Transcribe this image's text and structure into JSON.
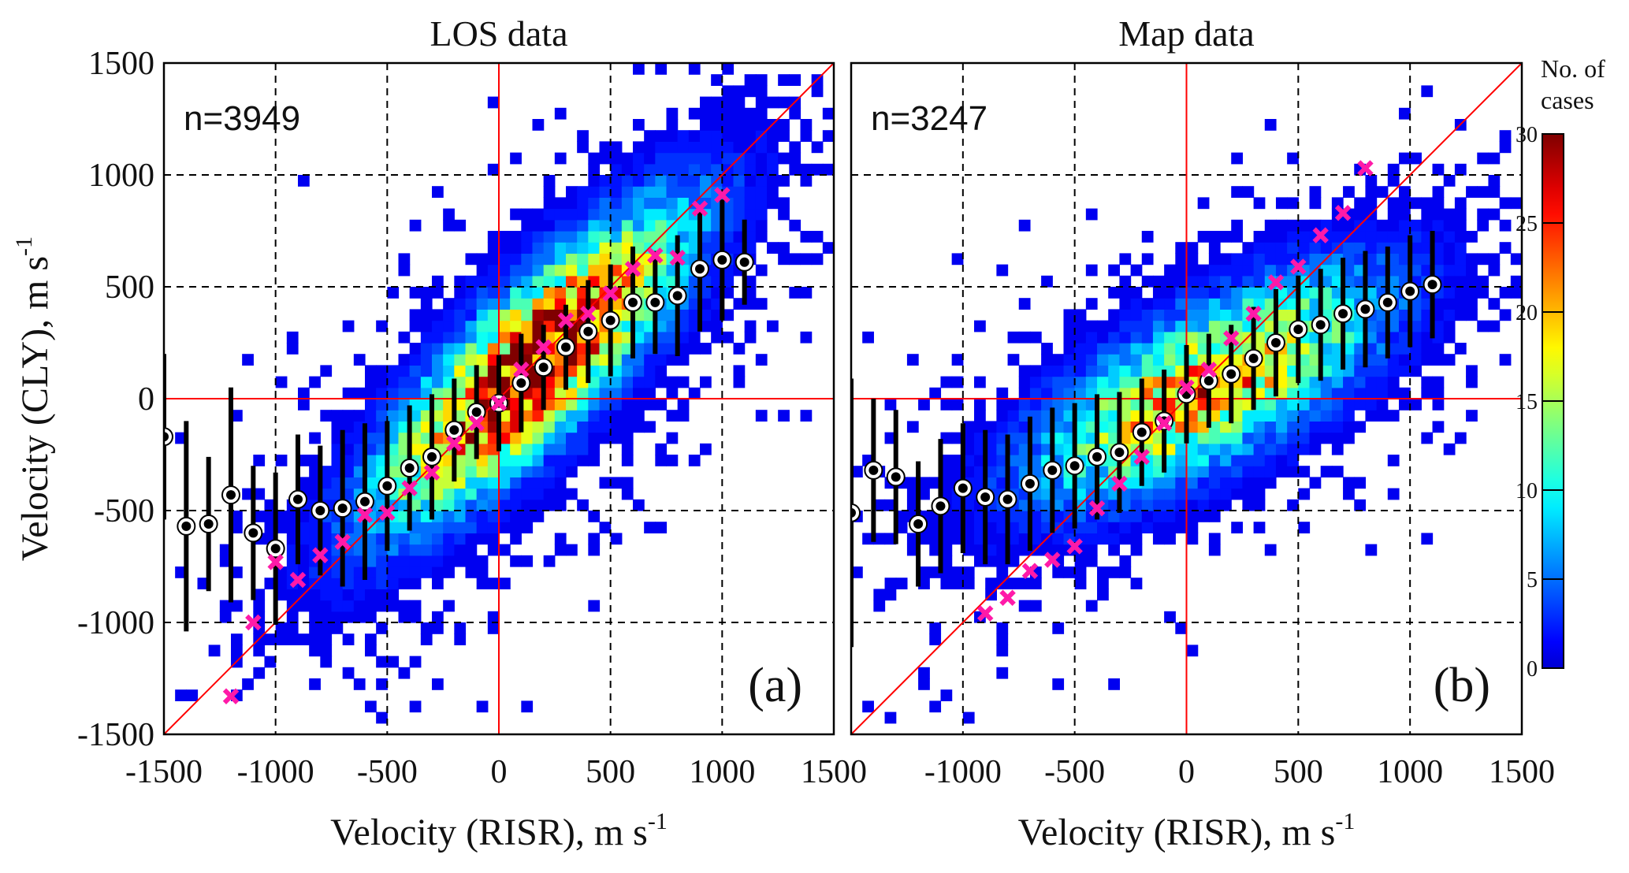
{
  "chart_data": [
    {
      "type": "heatmap",
      "panel_label": "(a)",
      "title": "LOS data",
      "annotation": "n=3949",
      "xlabel": "Velocity (RISR), m s",
      "xlabel_sup": "-1",
      "ylabel": "Velocity (CLY), m s",
      "ylabel_sup": "-1",
      "xlim": [
        -1500,
        1500
      ],
      "ylim": [
        -1500,
        1500
      ],
      "xticks": [
        "-1500",
        "-1000",
        "-500",
        "0",
        "500",
        "1000",
        "1500"
      ],
      "yticks": [
        "1500",
        "1000",
        "500",
        "0",
        "-500",
        "-1000",
        "-1500"
      ],
      "grid": true,
      "reference_lines": [
        "x=0",
        "y=0",
        "y=x"
      ],
      "bin_means": {
        "x": [
          -1500,
          -1400,
          -1300,
          -1200,
          -1100,
          -1000,
          -900,
          -800,
          -700,
          -600,
          -500,
          -400,
          -300,
          -200,
          -100,
          0,
          100,
          200,
          300,
          400,
          500,
          600,
          700,
          800,
          900,
          1000,
          1100
        ],
        "mean": [
          -170,
          -570,
          -560,
          -430,
          -600,
          -670,
          -450,
          -500,
          -490,
          -460,
          -390,
          -310,
          -260,
          -140,
          -60,
          -20,
          70,
          140,
          230,
          300,
          350,
          430,
          430,
          460,
          580,
          620,
          610
        ],
        "std": [
          370,
          470,
          300,
          480,
          300,
          340,
          290,
          290,
          350,
          350,
          290,
          280,
          280,
          230,
          210,
          215,
          220,
          190,
          190,
          230,
          250,
          250,
          230,
          270,
          280,
          270,
          190
        ]
      },
      "medians": {
        "x": [
          -1200,
          -1100,
          -1000,
          -900,
          -800,
          -700,
          -600,
          -500,
          -400,
          -300,
          -200,
          -100,
          0,
          100,
          200,
          300,
          400,
          500,
          600,
          700,
          800,
          900,
          1000
        ],
        "y": [
          -1330,
          -1000,
          -730,
          -810,
          -700,
          -640,
          -520,
          -510,
          -400,
          -330,
          -200,
          -110,
          -20,
          130,
          230,
          350,
          380,
          470,
          580,
          640,
          630,
          850,
          910
        ]
      }
    },
    {
      "type": "heatmap",
      "panel_label": "(b)",
      "title": "Map data",
      "annotation": "n=3247",
      "xlabel": "Velocity (RISR), m s",
      "xlabel_sup": "-1",
      "xlim": [
        -1500,
        1500
      ],
      "ylim": [
        -1500,
        1500
      ],
      "xticks": [
        "-1000",
        "-500",
        "0",
        "500",
        "1000",
        "1500"
      ],
      "grid": true,
      "reference_lines": [
        "x=0",
        "y=0",
        "y=x"
      ],
      "bin_means": {
        "x": [
          -1500,
          -1400,
          -1300,
          -1200,
          -1100,
          -1000,
          -900,
          -800,
          -700,
          -600,
          -500,
          -400,
          -300,
          -200,
          -100,
          0,
          100,
          200,
          300,
          400,
          500,
          600,
          700,
          800,
          900,
          1000,
          1100
        ],
        "mean": [
          -510,
          -320,
          -350,
          -560,
          -480,
          -400,
          -440,
          -450,
          -380,
          -320,
          -300,
          -260,
          -240,
          -150,
          -100,
          20,
          80,
          110,
          180,
          250,
          310,
          330,
          380,
          400,
          430,
          480,
          510
        ],
        "std": [
          600,
          320,
          300,
          280,
          300,
          290,
          300,
          290,
          300,
          280,
          280,
          280,
          270,
          240,
          230,
          220,
          210,
          220,
          230,
          240,
          240,
          250,
          250,
          260,
          250,
          250,
          240
        ]
      },
      "medians": {
        "x": [
          -900,
          -800,
          -700,
          -600,
          -500,
          -400,
          -300,
          -200,
          -100,
          0,
          100,
          200,
          300,
          400,
          500,
          600,
          700,
          800
        ],
        "y": [
          -960,
          -890,
          -770,
          -720,
          -660,
          -490,
          -380,
          -260,
          -110,
          50,
          130,
          270,
          380,
          520,
          590,
          730,
          830,
          1030
        ]
      }
    }
  ],
  "colorbar": {
    "title_line1": "No. of",
    "title_line2": "cases",
    "range": [
      0,
      30
    ],
    "ticks": [
      "30",
      "25",
      "20",
      "15",
      "10",
      "5",
      "0"
    ],
    "colormap": "jet"
  },
  "colors": {
    "reference_line": "#ff0000",
    "median_marker": "#ff1aa8",
    "mean_marker": "#000000",
    "grid": "#000000"
  }
}
